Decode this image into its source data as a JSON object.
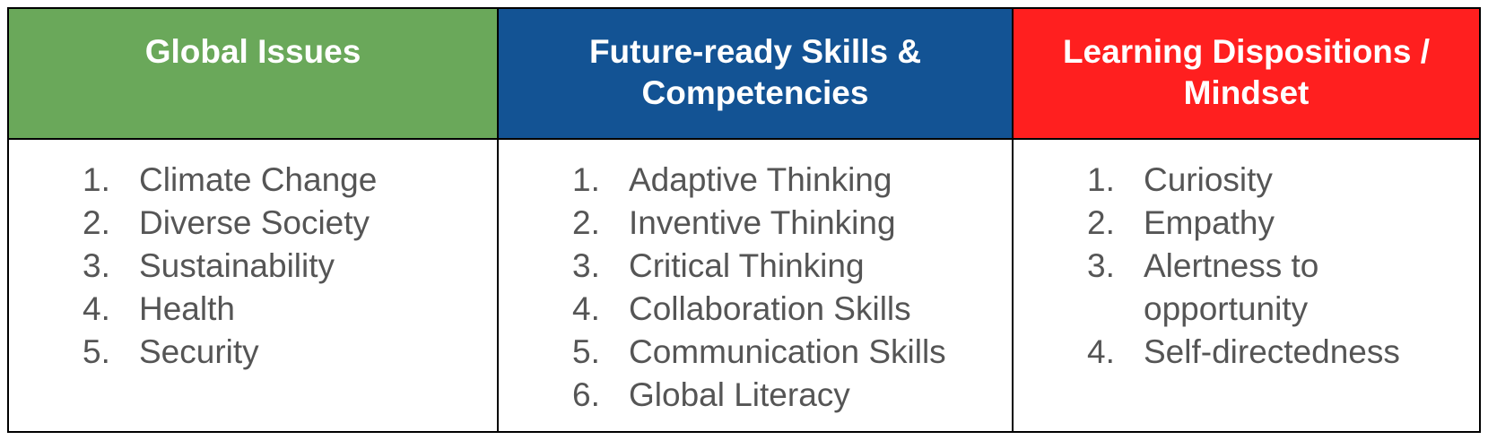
{
  "columns": [
    {
      "heading_lines": [
        "Global Issues"
      ],
      "color": "#6aa85a",
      "items": [
        {
          "num": "1.",
          "text": "Climate Change"
        },
        {
          "num": "2.",
          "text": "Diverse Society"
        },
        {
          "num": "3.",
          "text": "Sustainability"
        },
        {
          "num": "4.",
          "text": "Health"
        },
        {
          "num": "5.",
          "text": "Security"
        }
      ]
    },
    {
      "heading_lines": [
        "Future-ready Skills &",
        "Competencies"
      ],
      "color": "#135394",
      "items": [
        {
          "num": "1.",
          "text": "Adaptive Thinking"
        },
        {
          "num": "2.",
          "text": "Inventive Thinking"
        },
        {
          "num": "3.",
          "text": "Critical Thinking"
        },
        {
          "num": "4.",
          "text": "Collaboration Skills"
        },
        {
          "num": "5.",
          "text": "Communication Skills"
        },
        {
          "num": "6.",
          "text": "Global Literacy"
        }
      ]
    },
    {
      "heading_lines": [
        "Learning Dispositions /",
        "Mindset"
      ],
      "color": "#ff1f1f",
      "items": [
        {
          "num": "1.",
          "text": "Curiosity"
        },
        {
          "num": "2.",
          "text": "Empathy"
        },
        {
          "num": "3.",
          "text": "Alertness to opportunity"
        },
        {
          "num": "4.",
          "text": "Self-directedness"
        }
      ]
    }
  ]
}
